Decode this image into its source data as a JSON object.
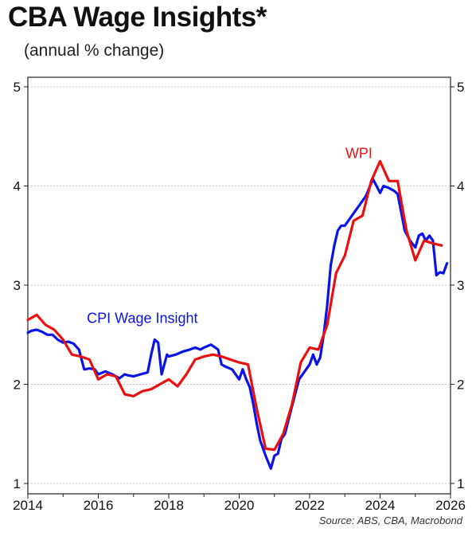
{
  "header": {
    "title": "CBA Wage Insights*",
    "subtitle": "(annual % change)"
  },
  "footer": {
    "source": "Source: ABS, CBA, Macrobond"
  },
  "chart_data": {
    "type": "line",
    "title": "CBA Wage Insights*",
    "subtitle": "(annual % change)",
    "xlim": [
      2014,
      2026
    ],
    "ylim": [
      1,
      5
    ],
    "x_ticks": [
      "2014",
      "2016",
      "2018",
      "2020",
      "2022",
      "2024",
      "2026"
    ],
    "y_ticks": [
      "1",
      "2",
      "3",
      "4",
      "5"
    ],
    "grid": true,
    "series": [
      {
        "name": "CPI Wage Insight",
        "color": "#0a14e6",
        "x": [
          2014.0,
          2014.1,
          2014.25,
          2014.4,
          2014.55,
          2014.7,
          2014.85,
          2015.0,
          2015.15,
          2015.3,
          2015.45,
          2015.6,
          2015.75,
          2015.9,
          2016.0,
          2016.2,
          2016.4,
          2016.6,
          2016.75,
          2016.85,
          2017.0,
          2017.2,
          2017.4,
          2017.5,
          2017.6,
          2017.7,
          2017.8,
          2017.95,
          2018.0,
          2018.2,
          2018.4,
          2018.6,
          2018.75,
          2018.9,
          2019.0,
          2019.2,
          2019.4,
          2019.5,
          2019.6,
          2019.8,
          2020.0,
          2020.1,
          2020.2,
          2020.3,
          2020.4,
          2020.5,
          2020.6,
          2020.75,
          2020.9,
          2021.0,
          2021.1,
          2021.2,
          2021.3,
          2021.5,
          2021.7,
          2021.9,
          2022.0,
          2022.1,
          2022.2,
          2022.3,
          2022.4,
          2022.5,
          2022.6,
          2022.7,
          2022.8,
          2022.9,
          2023.0,
          2023.2,
          2023.4,
          2023.6,
          2023.8,
          2023.9,
          2024.0,
          2024.1,
          2024.25,
          2024.4,
          2024.5,
          2024.7,
          2024.85,
          2025.0,
          2025.1,
          2025.2,
          2025.3,
          2025.4,
          2025.5,
          2025.6,
          2025.7,
          2025.8,
          2025.9
        ],
        "values": [
          2.52,
          2.54,
          2.55,
          2.53,
          2.5,
          2.5,
          2.45,
          2.42,
          2.43,
          2.41,
          2.35,
          2.15,
          2.16,
          2.15,
          2.1,
          2.13,
          2.1,
          2.06,
          2.1,
          2.09,
          2.08,
          2.1,
          2.12,
          2.3,
          2.45,
          2.42,
          2.1,
          2.3,
          2.28,
          2.3,
          2.33,
          2.35,
          2.37,
          2.35,
          2.37,
          2.4,
          2.35,
          2.2,
          2.18,
          2.15,
          2.05,
          2.15,
          2.05,
          1.97,
          1.8,
          1.6,
          1.43,
          1.28,
          1.15,
          1.28,
          1.3,
          1.45,
          1.5,
          1.78,
          2.05,
          2.15,
          2.2,
          2.3,
          2.2,
          2.27,
          2.5,
          2.8,
          3.2,
          3.4,
          3.55,
          3.6,
          3.6,
          3.7,
          3.8,
          3.9,
          4.07,
          4.0,
          3.93,
          4.0,
          3.98,
          3.95,
          3.92,
          3.55,
          3.45,
          3.38,
          3.5,
          3.52,
          3.45,
          3.5,
          3.45,
          3.1,
          3.13,
          3.12,
          3.22
        ]
      },
      {
        "name": "WPI",
        "color": "#ea1010",
        "x": [
          2014.0,
          2014.25,
          2014.5,
          2014.75,
          2015.0,
          2015.25,
          2015.5,
          2015.75,
          2016.0,
          2016.25,
          2016.5,
          2016.75,
          2017.0,
          2017.25,
          2017.5,
          2017.75,
          2018.0,
          2018.25,
          2018.5,
          2018.75,
          2019.0,
          2019.25,
          2019.5,
          2019.75,
          2020.0,
          2020.25,
          2020.5,
          2020.75,
          2021.0,
          2021.25,
          2021.5,
          2021.75,
          2022.0,
          2022.25,
          2022.5,
          2022.75,
          2023.0,
          2023.25,
          2023.5,
          2023.75,
          2024.0,
          2024.25,
          2024.5,
          2024.75,
          2025.0,
          2025.25,
          2025.5,
          2025.75
        ],
        "values": [
          2.65,
          2.7,
          2.6,
          2.55,
          2.45,
          2.3,
          2.28,
          2.25,
          2.05,
          2.1,
          2.08,
          1.9,
          1.88,
          1.93,
          1.95,
          2.0,
          2.05,
          1.98,
          2.1,
          2.25,
          2.28,
          2.3,
          2.28,
          2.25,
          2.22,
          2.2,
          1.75,
          1.35,
          1.34,
          1.5,
          1.8,
          2.22,
          2.37,
          2.35,
          2.6,
          3.12,
          3.3,
          3.65,
          3.7,
          4.05,
          4.25,
          4.05,
          4.05,
          3.55,
          3.25,
          3.45,
          3.42,
          3.4
        ]
      }
    ],
    "annotations": [
      {
        "text": "CPI Wage Insight",
        "x": 2017.25,
        "y": 2.62,
        "color": "#0a14e6"
      },
      {
        "text": "WPI",
        "x": 2023.4,
        "y": 4.28,
        "color": "#ea1010"
      }
    ]
  }
}
